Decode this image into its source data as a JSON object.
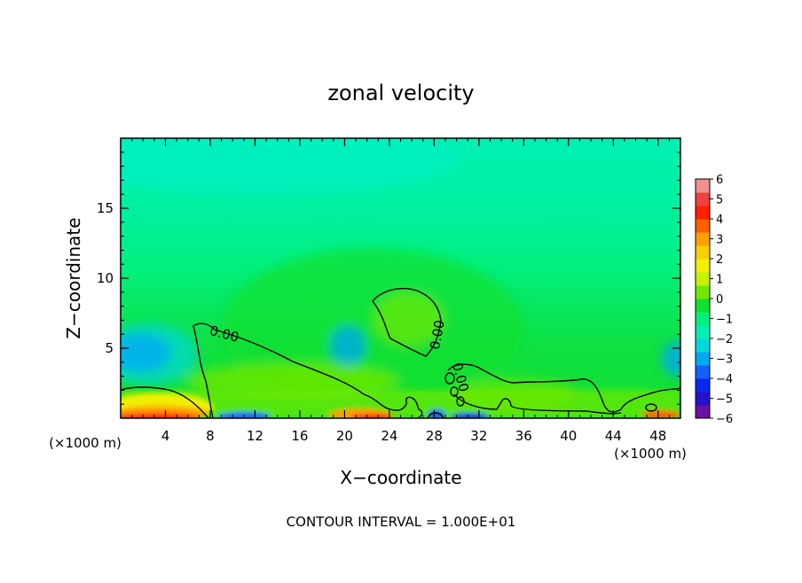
{
  "chart_data": {
    "type": "heatmap",
    "title": "zonal velocity",
    "xlabel": "X−coordinate",
    "ylabel": "Z−coordinate",
    "x_unit_left": "(×1000 m)",
    "x_unit_right": "(×1000 m)",
    "footer": "CONTOUR INTERVAL = 1.000E+01",
    "xlim": [
      0,
      50
    ],
    "ylim": [
      0,
      20
    ],
    "x_ticks": [
      4,
      8,
      12,
      16,
      20,
      24,
      28,
      32,
      36,
      40,
      44,
      48
    ],
    "y_ticks": [
      5,
      10,
      15
    ],
    "contour_labels": [
      "0.00",
      "0.00",
      "0.00"
    ],
    "colorbar": {
      "min": -6,
      "max": 6,
      "tick_values": [
        6,
        5,
        4,
        3,
        2,
        1,
        0,
        -1,
        -2,
        -3,
        -4,
        -5,
        -6
      ],
      "tick_labels": [
        "6",
        "5",
        "4",
        "3",
        "2",
        "1",
        "0",
        "−1",
        "−2",
        "−3",
        "−4",
        "−5",
        "−6"
      ],
      "colors": [
        "#6a0fa0",
        "#2a10c8",
        "#0828f0",
        "#1460ff",
        "#00a8f0",
        "#00d8e0",
        "#00f0b4",
        "#00f080",
        "#10e030",
        "#70e800",
        "#c8f000",
        "#f0f000",
        "#f8d000",
        "#ffa000",
        "#ff6000",
        "#ff2000",
        "#f04040",
        "#f09090"
      ]
    }
  }
}
